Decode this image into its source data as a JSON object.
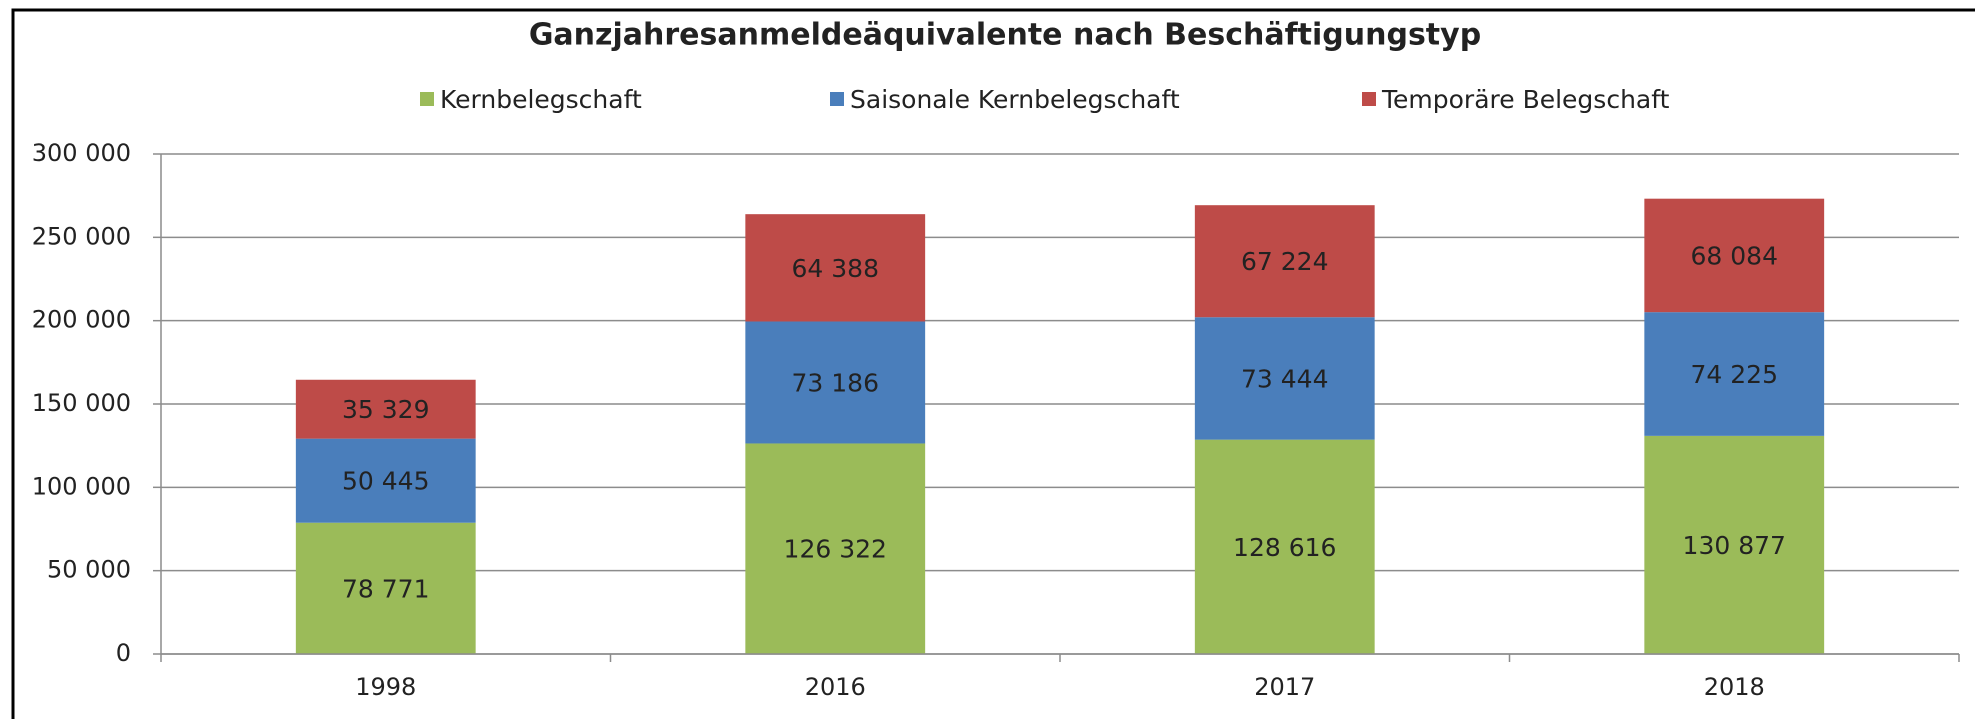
{
  "chart_data": {
    "type": "stacked_bar",
    "title": "Ganzjahresanmeldeäquivalente nach Beschäftigungstyp",
    "categories": [
      "1998",
      "2016",
      "2017",
      "2018"
    ],
    "series": [
      {
        "name": "Kernbelegschaft",
        "color": "#9bbb59",
        "values": [
          78771,
          126322,
          128616,
          130877
        ],
        "value_labels": [
          "78 771",
          "126 322",
          "128 616",
          "130 877"
        ]
      },
      {
        "name": "Saisonale Kernbelegschaft",
        "color": "#4a7ebb",
        "values": [
          50445,
          73186,
          73444,
          74225
        ],
        "value_labels": [
          "50 445",
          "73 186",
          "73 444",
          "74 225"
        ]
      },
      {
        "name": "Temporäre Belegschaft",
        "color": "#be4b48",
        "values": [
          35329,
          64388,
          67224,
          68084
        ],
        "value_labels": [
          "35 329",
          "64 388",
          "67 224",
          "68 084"
        ]
      }
    ],
    "ylim": [
      0,
      300000
    ],
    "yticks": [
      0,
      {
        "value": 50000,
        "label": "50 000"
      },
      {
        "value": 100000,
        "label": "100 000"
      },
      {
        "value": 150000,
        "label": "150 000"
      },
      {
        "value": 200000,
        "label": "200 000"
      },
      {
        "value": 250000,
        "label": "250 000"
      },
      {
        "value": 300000,
        "label": "300 000"
      }
    ],
    "grid": true,
    "legend": "top"
  }
}
